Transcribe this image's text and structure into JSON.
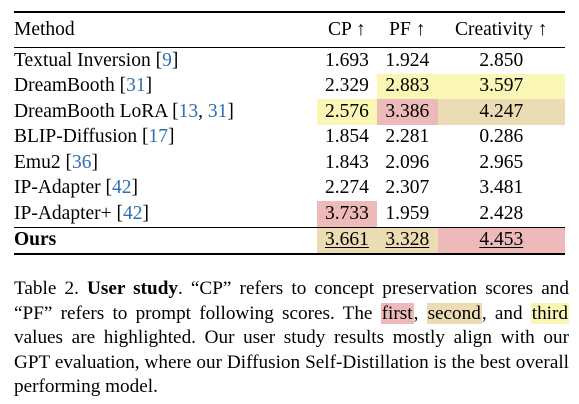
{
  "table": {
    "headers": {
      "method": "Method",
      "cp": "CP",
      "pf": "PF",
      "creativity": "Creativity",
      "arrow": "↑"
    },
    "colors": {
      "first": "#eeb9b9",
      "second": "#ecdcb4",
      "third": "#faf6b6",
      "cite": "#2f6fb3"
    },
    "rows": [
      {
        "method": "Textual Inversion",
        "open": " [",
        "cites": [
          "9"
        ],
        "close": "]",
        "cp": "1.693",
        "pf": "1.924",
        "creativity": "2.850"
      },
      {
        "method": "DreamBooth",
        "open": " [",
        "cites": [
          "31"
        ],
        "close": "]",
        "cp": "2.329",
        "pf": "2.883",
        "creativity": "3.597"
      },
      {
        "method": "DreamBooth LoRA",
        "open": " [",
        "cites": [
          "13",
          "31"
        ],
        "sep": ", ",
        "close": "]",
        "cp": "2.576",
        "pf": "3.386",
        "creativity": "4.247"
      },
      {
        "method": "BLIP-Diffusion",
        "open": " [",
        "cites": [
          "17"
        ],
        "close": "]",
        "cp": "1.854",
        "pf": "2.281",
        "creativity": "0.286"
      },
      {
        "method": "Emu2",
        "open": " [",
        "cites": [
          "36"
        ],
        "close": "]",
        "cp": "1.843",
        "pf": "2.096",
        "creativity": "2.965"
      },
      {
        "method": "IP-Adapter",
        "open": " [",
        "cites": [
          "42"
        ],
        "close": "]",
        "cp": "2.274",
        "pf": "2.307",
        "creativity": "3.481"
      },
      {
        "method": "IP-Adapter+",
        "open": " [",
        "cites": [
          "42"
        ],
        "close": "]",
        "cp": "3.733",
        "pf": "1.959",
        "creativity": "2.428"
      },
      {
        "method": "Ours",
        "cp": "3.661",
        "pf": "3.328",
        "creativity": "4.453"
      }
    ],
    "highlights": {
      "DreamBooth": {
        "pf": "third",
        "creativity": "third"
      },
      "DreamBooth LoRA": {
        "cp": "third",
        "pf": "first",
        "creativity": "second"
      },
      "IP-Adapter+": {
        "cp": "first"
      },
      "Ours": {
        "cp": "second",
        "pf": "second",
        "creativity": "first"
      }
    }
  },
  "caption": {
    "label": "Table 2.",
    "title": "User study",
    "t1": ". “CP” refers to concept preservation scores and “PF” refers to prompt following scores. The ",
    "first": "first",
    "comma": ", ",
    "second": "second",
    "and": ", and ",
    "third": "third",
    "t2": " values are highlighted. Our user study results mostly align with our GPT evaluation, where our Diffusion Self-Distillation is the best overall performing model."
  }
}
